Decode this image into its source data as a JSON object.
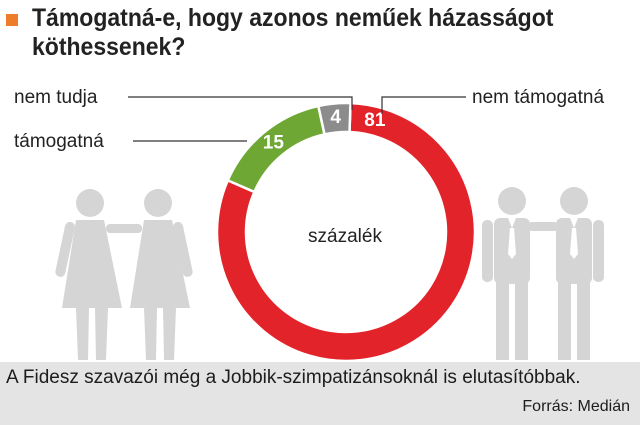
{
  "header": {
    "title": "Támogatná-e, hogy azonos neműek házasságot köthessenek?"
  },
  "chart_data": {
    "type": "pie",
    "center_label": "százalék",
    "slices": [
      {
        "label": "nem támogatná",
        "value": 81,
        "value_label": "81",
        "color": "#e3232a"
      },
      {
        "label": "támogatná",
        "value": 15,
        "value_label": "15",
        "color": "#6ea733"
      },
      {
        "label": "nem tudja",
        "value": 4,
        "value_label": "4",
        "color": "#8c8c8c"
      }
    ]
  },
  "colors": {
    "accent": "#ee7d2b",
    "figures": "#d5d5d5",
    "footer_bg": "#e4e4e4"
  },
  "footer": {
    "note": "A Fidesz szavazói még a Jobbik-szimpatizánsoknál is elutasítóbbak.",
    "source": "Forrás: Medián"
  }
}
